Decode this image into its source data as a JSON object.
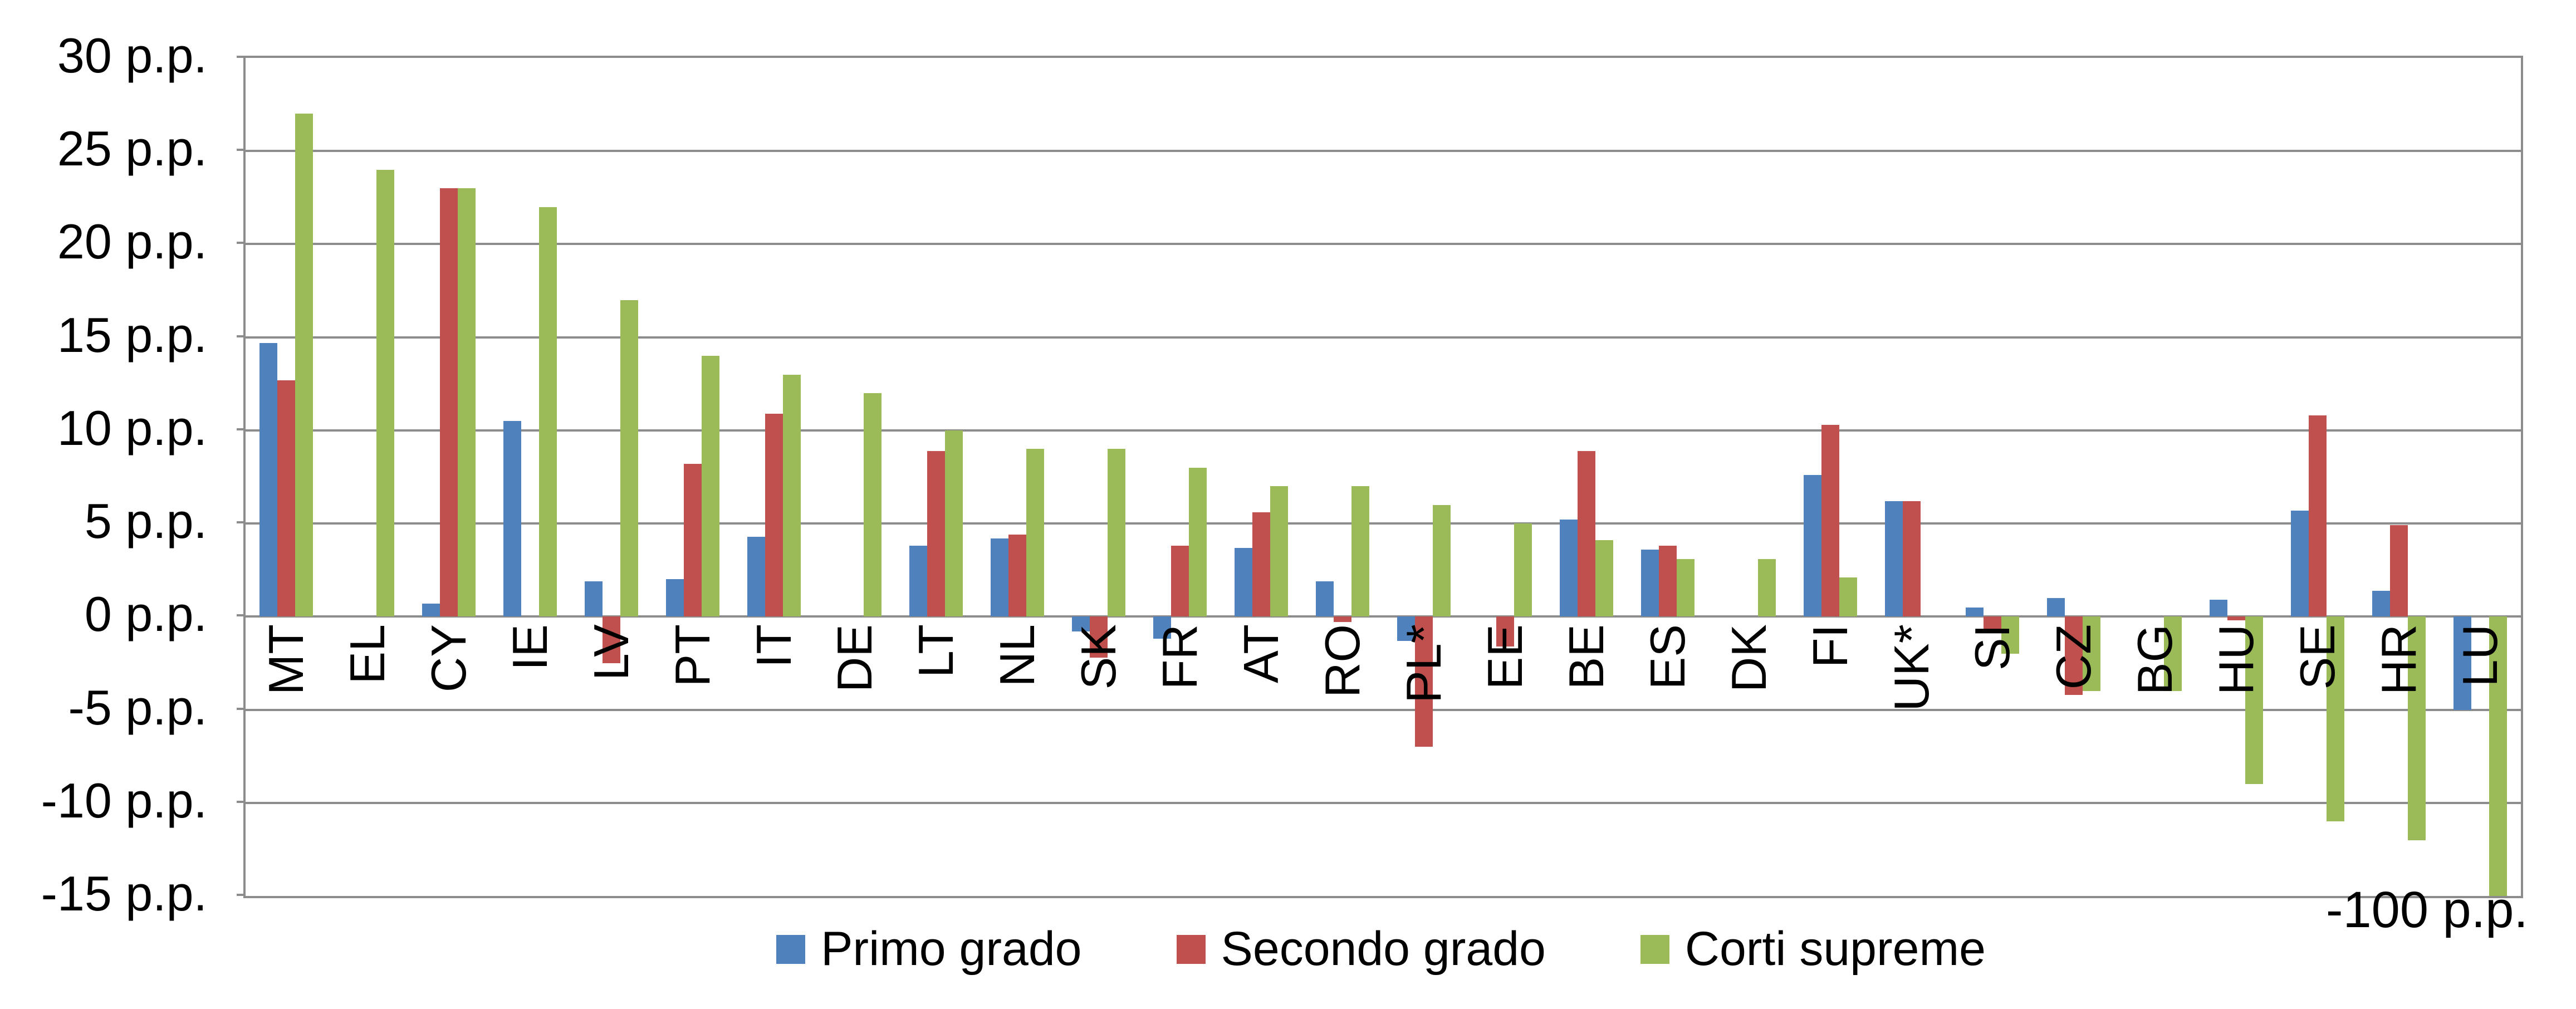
{
  "chart_data": {
    "type": "bar",
    "title": "",
    "xlabel": "",
    "ylabel": "",
    "unit": "p.p.",
    "ylim": [
      -15,
      30
    ],
    "ytick_step": 5,
    "grid": true,
    "legend_position": "bottom-center",
    "y_ticks": [
      {
        "value": 30,
        "label": "30 p.p."
      },
      {
        "value": 25,
        "label": "25 p.p."
      },
      {
        "value": 20,
        "label": "20 p.p."
      },
      {
        "value": 15,
        "label": "15 p.p."
      },
      {
        "value": 10,
        "label": "10 p.p."
      },
      {
        "value": 5,
        "label": "5 p.p."
      },
      {
        "value": 0,
        "label": "0 p.p."
      },
      {
        "value": -5,
        "label": "-5 p.p."
      },
      {
        "value": -10,
        "label": "-10 p.p."
      },
      {
        "value": -15,
        "label": "-15 p.p."
      }
    ],
    "categories": [
      "MT",
      "EL",
      "CY",
      "IE",
      "LV",
      "PT",
      "IT",
      "DE",
      "LT",
      "NL",
      "SK",
      "FR",
      "AT",
      "RO",
      "PL*",
      "EE",
      "BE",
      "ES",
      "DK",
      "FI",
      "UK*",
      "SI",
      "CZ",
      "BG",
      "HU",
      "SE",
      "HR",
      "LU"
    ],
    "series": [
      {
        "name": "Primo grado",
        "color": "#4F81BD",
        "values": [
          14.7,
          null,
          0.7,
          10.5,
          1.9,
          2.0,
          4.3,
          null,
          3.8,
          4.2,
          -0.8,
          -1.2,
          3.7,
          1.9,
          -1.3,
          null,
          5.2,
          3.6,
          null,
          7.6,
          6.2,
          0.5,
          1.0,
          null,
          0.9,
          5.7,
          1.4,
          -5.0
        ]
      },
      {
        "name": "Secondo grado",
        "color": "#C0504D",
        "values": [
          12.7,
          null,
          23.0,
          null,
          -2.5,
          8.2,
          10.9,
          null,
          8.9,
          4.4,
          -2.2,
          3.8,
          5.6,
          -0.3,
          -7.0,
          -1.6,
          8.9,
          3.8,
          null,
          10.3,
          6.2,
          -0.9,
          -4.2,
          null,
          -0.2,
          10.8,
          4.9,
          null
        ]
      },
      {
        "name": "Corti supreme",
        "color": "#9BBB59",
        "values": [
          27.0,
          24.0,
          23.0,
          22.0,
          17.0,
          14.0,
          13.0,
          12.0,
          10.0,
          9.0,
          9.0,
          8.0,
          7.0,
          7.0,
          6.0,
          5.0,
          4.1,
          3.1,
          3.1,
          2.1,
          null,
          -2.0,
          -4.0,
          -4.0,
          -9.0,
          -11.0,
          -12.0,
          -100.0
        ]
      }
    ],
    "annotation": {
      "text": "-100 p.p.",
      "meaning": "Actual value of the clipped Corti supreme bar for LU",
      "category": "LU",
      "series": "Corti supreme"
    },
    "colors": {
      "gridline": "#8C8C8C",
      "text": "#000000",
      "background": "#FFFFFF"
    }
  }
}
